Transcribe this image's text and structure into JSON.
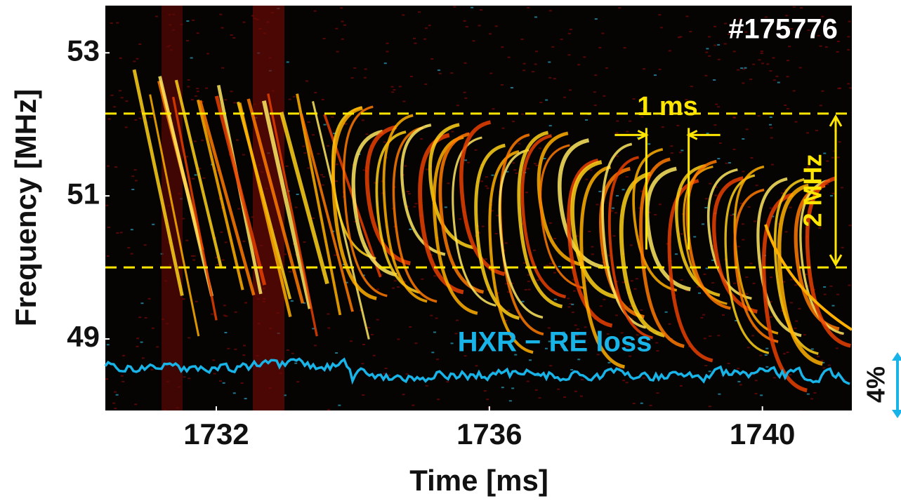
{
  "chart_data": {
    "type": "spectrogram",
    "shot_label": "#175776",
    "xlabel": "Time [ms]",
    "ylabel": "Frequency [MHz]",
    "xlim": [
      1730.375,
      1741.31
    ],
    "xticks": [
      1732,
      1736,
      1740
    ],
    "ylim": [
      48.0,
      53.66
    ],
    "yticks": [
      49,
      51,
      53
    ],
    "dashed_lines": [
      50.0,
      52.15
    ],
    "dashed_color": "#ffe600",
    "span_lines": [
      1738.3,
      1738.92
    ],
    "span_y": [
      50.25,
      51.95
    ],
    "span_label": "1 ms",
    "band_label": "2 MHz",
    "trace_label": "HXR − RE loss",
    "trace_color": "#18b4e8",
    "scale_label": "4%"
  }
}
